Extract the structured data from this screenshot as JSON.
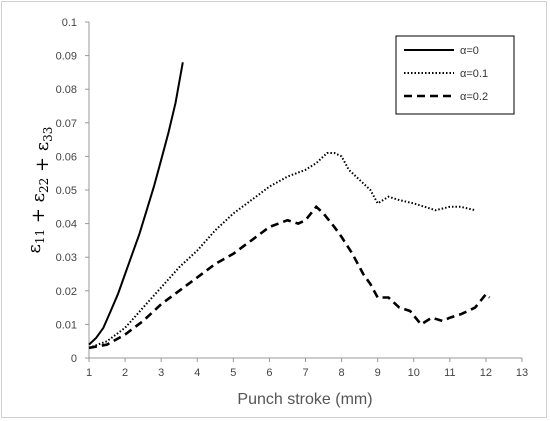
{
  "chart_data": {
    "type": "line",
    "title": "",
    "xlabel": "Punch stroke (mm)",
    "ylabel": "ε11 + ε22 + ε33",
    "xlim": [
      1,
      13
    ],
    "ylim": [
      0,
      0.1
    ],
    "x_ticks": [
      "1",
      "2",
      "3",
      "4",
      "5",
      "6",
      "7",
      "8",
      "9",
      "10",
      "11",
      "12",
      "13"
    ],
    "y_ticks": [
      "0",
      "0.01",
      "0.02",
      "0.03",
      "0.04",
      "0.05",
      "0.06",
      "0.07",
      "0.08",
      "0.09",
      "0.1"
    ],
    "grid": false,
    "legend_position": "top-right",
    "series": [
      {
        "name": "α=0",
        "style": "solid",
        "points": [
          [
            1.0,
            0.004
          ],
          [
            1.2,
            0.006
          ],
          [
            1.4,
            0.009
          ],
          [
            1.6,
            0.014
          ],
          [
            1.8,
            0.019
          ],
          [
            2.0,
            0.025
          ],
          [
            2.2,
            0.031
          ],
          [
            2.4,
            0.037
          ],
          [
            2.6,
            0.044
          ],
          [
            2.8,
            0.051
          ],
          [
            3.0,
            0.059
          ],
          [
            3.2,
            0.067
          ],
          [
            3.4,
            0.076
          ],
          [
            3.6,
            0.088
          ]
        ]
      },
      {
        "name": "α=0.1",
        "style": "dotted",
        "points": [
          [
            1.0,
            0.003
          ],
          [
            1.5,
            0.005
          ],
          [
            2.0,
            0.009
          ],
          [
            2.5,
            0.015
          ],
          [
            3.0,
            0.021
          ],
          [
            3.5,
            0.027
          ],
          [
            4.0,
            0.032
          ],
          [
            4.5,
            0.038
          ],
          [
            5.0,
            0.043
          ],
          [
            5.5,
            0.047
          ],
          [
            6.0,
            0.051
          ],
          [
            6.5,
            0.054
          ],
          [
            7.0,
            0.056
          ],
          [
            7.3,
            0.058
          ],
          [
            7.6,
            0.061
          ],
          [
            7.8,
            0.061
          ],
          [
            8.0,
            0.06
          ],
          [
            8.2,
            0.056
          ],
          [
            8.5,
            0.053
          ],
          [
            8.8,
            0.05
          ],
          [
            9.0,
            0.046
          ],
          [
            9.3,
            0.048
          ],
          [
            9.6,
            0.047
          ],
          [
            10.0,
            0.046
          ],
          [
            10.3,
            0.045
          ],
          [
            10.6,
            0.044
          ],
          [
            11.0,
            0.045
          ],
          [
            11.3,
            0.045
          ],
          [
            11.7,
            0.044
          ]
        ]
      },
      {
        "name": "α=0.2",
        "style": "dashed",
        "points": [
          [
            1.0,
            0.003
          ],
          [
            1.5,
            0.004
          ],
          [
            2.0,
            0.007
          ],
          [
            2.5,
            0.011
          ],
          [
            3.0,
            0.016
          ],
          [
            3.5,
            0.02
          ],
          [
            4.0,
            0.024
          ],
          [
            4.5,
            0.028
          ],
          [
            5.0,
            0.031
          ],
          [
            5.5,
            0.035
          ],
          [
            6.0,
            0.039
          ],
          [
            6.5,
            0.041
          ],
          [
            6.8,
            0.04
          ],
          [
            7.0,
            0.041
          ],
          [
            7.3,
            0.045
          ],
          [
            7.5,
            0.043
          ],
          [
            7.8,
            0.039
          ],
          [
            8.0,
            0.036
          ],
          [
            8.3,
            0.031
          ],
          [
            8.6,
            0.025
          ],
          [
            8.8,
            0.022
          ],
          [
            9.0,
            0.018
          ],
          [
            9.3,
            0.018
          ],
          [
            9.6,
            0.015
          ],
          [
            9.9,
            0.014
          ],
          [
            10.2,
            0.01
          ],
          [
            10.5,
            0.012
          ],
          [
            10.8,
            0.011
          ],
          [
            11.0,
            0.012
          ],
          [
            11.3,
            0.013
          ],
          [
            11.7,
            0.015
          ],
          [
            12.0,
            0.019
          ],
          [
            12.1,
            0.018
          ]
        ]
      }
    ]
  }
}
